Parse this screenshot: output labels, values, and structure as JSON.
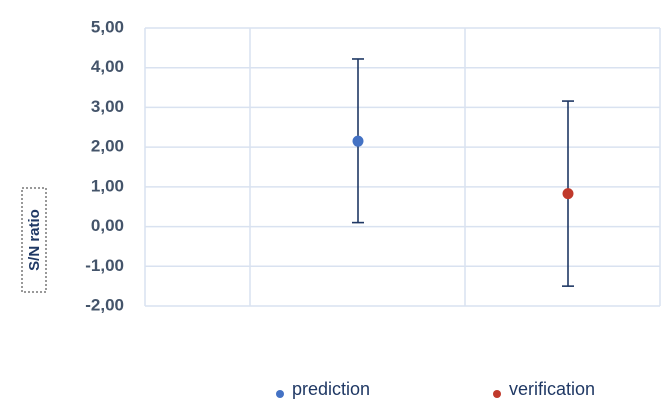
{
  "chart_data": {
    "type": "scatter",
    "ylabel": "S/N ratio",
    "ylim": [
      -2,
      5
    ],
    "yticks": [
      "-2,00",
      "-1,00",
      "0,00",
      "1,00",
      "2,00",
      "3,00",
      "4,00",
      "5,00"
    ],
    "grid": true,
    "legend": "bottom",
    "series": [
      {
        "name": "prediction",
        "color": "#4472c4",
        "x": 1,
        "y": 2.15,
        "error_low": 0.1,
        "error_high": 4.22
      },
      {
        "name": "verification",
        "color": "#c0392b",
        "x": 2,
        "y": 0.83,
        "error_low": -1.5,
        "error_high": 3.16
      }
    ],
    "error_bar_color": "#1f3864"
  }
}
